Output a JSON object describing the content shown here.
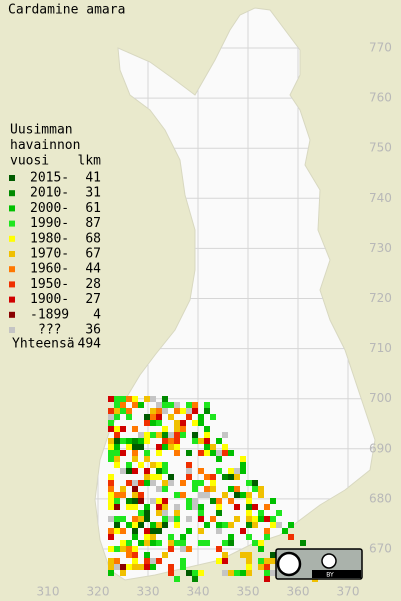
{
  "title": "Cardamine amara",
  "legend": {
    "heading": [
      "Uusimman",
      "havainnon",
      "vuosi"
    ],
    "count_heading": "lkm",
    "items": [
      {
        "label": "2015-",
        "count": 41,
        "color": "#005a00"
      },
      {
        "label": "2010-",
        "count": 31,
        "color": "#008a00"
      },
      {
        "label": "2000-",
        "count": 61,
        "color": "#00c000"
      },
      {
        "label": "1990-",
        "count": 87,
        "color": "#1ee61e"
      },
      {
        "label": "1980-",
        "count": 68,
        "color": "#ffff00"
      },
      {
        "label": "1970-",
        "count": 67,
        "color": "#f0c000"
      },
      {
        "label": "1960-",
        "count": 44,
        "color": "#ff7800"
      },
      {
        "label": "1950-",
        "count": 28,
        "color": "#f03000"
      },
      {
        "label": "1900-",
        "count": 27,
        "color": "#d00000"
      },
      {
        "label": "-1899",
        "count": 4,
        "color": "#880000"
      },
      {
        "label": "???",
        "count": 36,
        "color": "#c4c4c4"
      }
    ],
    "total_label": "Yhteensä",
    "total": 494
  },
  "grid": {
    "north_labels": [
      770,
      760,
      750,
      740,
      730,
      720,
      710,
      700,
      690,
      680,
      670
    ],
    "east_labels": [
      310,
      320,
      330,
      340,
      350,
      360,
      370
    ]
  },
  "license": {
    "by": "BY"
  }
}
